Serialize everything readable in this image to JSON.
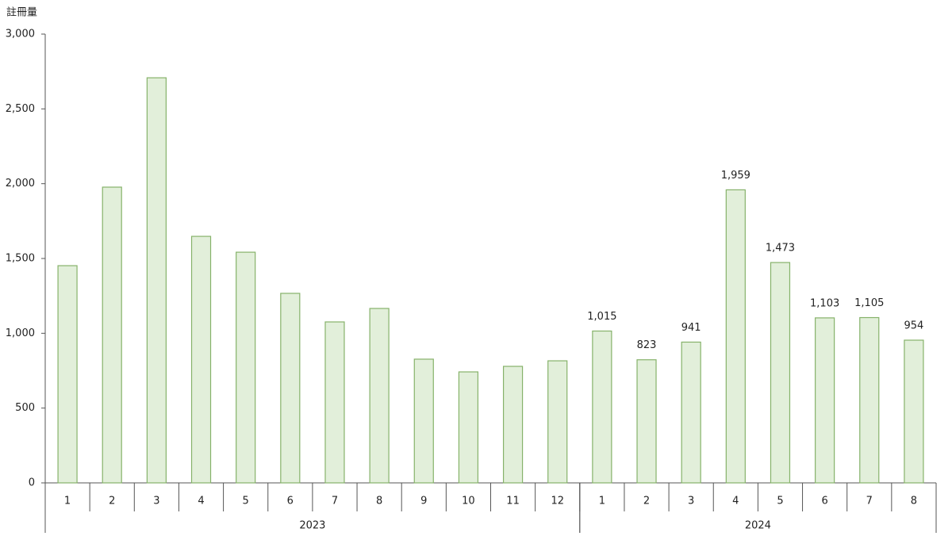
{
  "chart_data": {
    "type": "bar",
    "y_label": "註冊量",
    "categories": [
      "1",
      "2",
      "3",
      "4",
      "5",
      "6",
      "7",
      "8",
      "9",
      "10",
      "11",
      "12",
      "1",
      "2",
      "3",
      "4",
      "5",
      "6",
      "7",
      "8"
    ],
    "x_groups": [
      {
        "label": "2023",
        "span": 12
      },
      {
        "label": "2024",
        "span": 8
      }
    ],
    "values": [
      1452,
      1977,
      2708,
      1648,
      1542,
      1267,
      1076,
      1166,
      827,
      742,
      779,
      816,
      1015,
      823,
      941,
      1959,
      1473,
      1103,
      1105,
      954
    ],
    "value_labels": [
      null,
      null,
      null,
      null,
      null,
      null,
      null,
      null,
      null,
      null,
      null,
      null,
      "1,015",
      "823",
      "941",
      "1,959",
      "1,473",
      "1,103",
      "1,105",
      "954"
    ],
    "color": "#e2efda",
    "edge_color": "#86b26a",
    "ylim": [
      0,
      3000
    ],
    "yticks": [
      0,
      500,
      {
        "value": 1000,
        "label": "1,000"
      },
      {
        "value": 1500,
        "label": "1,500"
      },
      {
        "value": 2000,
        "label": "2,000"
      },
      {
        "value": 2500,
        "label": "2,500"
      },
      {
        "value": 3000,
        "label": "3,000"
      }
    ],
    "grid": false
  }
}
